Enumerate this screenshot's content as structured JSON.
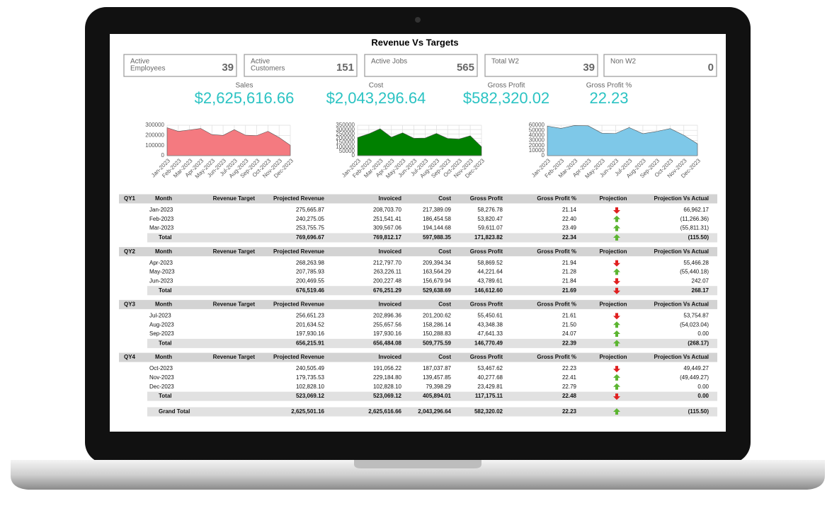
{
  "title": "Revenue Vs Targets",
  "cards": [
    {
      "label": [
        "Active",
        "Employees"
      ],
      "value": 39
    },
    {
      "label": [
        "Active",
        "Customers"
      ],
      "value": 151
    },
    {
      "label": [
        "Active Jobs"
      ],
      "value": 565
    },
    {
      "label": [
        "Total W2"
      ],
      "value": 39
    },
    {
      "label": [
        "Non W2"
      ],
      "value": 0
    }
  ],
  "metrics": [
    {
      "label": "Sales",
      "value": "$2,625,616.66"
    },
    {
      "label": "Cost",
      "value": "$2,043,296.64"
    },
    {
      "label": "Gross Profit",
      "value": "$582,320.02"
    },
    {
      "label": "Gross Profit %",
      "value": "22.23"
    }
  ],
  "charts": [
    {
      "type": "area",
      "color": "#f47a80",
      "categories": [
        "Jan-2023",
        "Feb-2023",
        "Mar-2023",
        "Apr-2023",
        "May-2023",
        "Jun-2023",
        "Jul-2023",
        "Aug-2023",
        "Sep-2023",
        "Oct-2023",
        "Nov-2023",
        "Dec-2023"
      ],
      "values": [
        275666,
        240275,
        253756,
        268264,
        207786,
        200470,
        256651,
        201635,
        197930,
        240505,
        179736,
        102828
      ],
      "ylim": [
        0,
        300000
      ],
      "yticks": [
        0,
        100000,
        200000,
        300000
      ]
    },
    {
      "type": "area",
      "color": "#008000",
      "categories": [
        "Jan-2023",
        "Feb-2023",
        "Mar-2023",
        "Apr-2023",
        "May-2023",
        "Jun-2023",
        "Jul-2023",
        "Aug-2023",
        "Sep-2023",
        "Oct-2023",
        "Nov-2023",
        "Dec-2023"
      ],
      "values": [
        208704,
        251541,
        309567,
        212798,
        263226,
        200227,
        202896,
        255658,
        197930,
        191056,
        229185,
        102828
      ],
      "ylim": [
        0,
        350000
      ],
      "yticks": [
        0,
        50000,
        100000,
        150000,
        200000,
        250000,
        300000,
        350000
      ]
    },
    {
      "type": "area",
      "color": "#7ec8e8",
      "categories": [
        "Jan-2023",
        "Feb-2023",
        "Mar-2023",
        "Apr-2023",
        "May-2023",
        "Jun-2023",
        "Jul-2023",
        "Aug-2023",
        "Sep-2023",
        "Oct-2023",
        "Nov-2023",
        "Dec-2023"
      ],
      "values": [
        58277,
        53820,
        59611,
        58870,
        44222,
        43790,
        55451,
        43348,
        47641,
        53468,
        40278,
        23430
      ],
      "ylim": [
        0,
        60000
      ],
      "yticks": [
        0,
        10000,
        20000,
        30000,
        40000,
        50000,
        60000
      ]
    }
  ],
  "table": {
    "columns": [
      "Month",
      "Revenue Target",
      "Projected Revenue",
      "Invoiced",
      "Cost",
      "Gross Profit",
      "Gross Profit %",
      "Projection",
      "Projection Vs Actual"
    ],
    "quarters": [
      {
        "label": "QY1",
        "rows": [
          {
            "cells": [
              "Jan-2023",
              "275,665.87",
              "208,703.70",
              "217,389.09",
              "58,276.78",
              "21.14",
              "66,962.17"
            ],
            "projection": "down"
          },
          {
            "cells": [
              "Feb-2023",
              "240,275.05",
              "251,541.41",
              "186,454.58",
              "53,820.47",
              "22.40",
              "(11,266.36)"
            ],
            "projection": "up"
          },
          {
            "cells": [
              "Mar-2023",
              "253,755.75",
              "309,567.06",
              "194,144.68",
              "59,611.07",
              "23.49",
              "(55,811.31)"
            ],
            "projection": "up"
          }
        ],
        "total": {
          "cells": [
            "Total",
            "769,696.67",
            "769,812.17",
            "597,988.35",
            "171,823.82",
            "22.34",
            "(115.50)"
          ],
          "projection": "up"
        }
      },
      {
        "label": "QY2",
        "rows": [
          {
            "cells": [
              "Apr-2023",
              "268,263.98",
              "212,797.70",
              "209,394.34",
              "58,869.52",
              "21.94",
              "55,466.28"
            ],
            "projection": "down"
          },
          {
            "cells": [
              "May-2023",
              "207,785.93",
              "263,226.11",
              "163,564.29",
              "44,221.64",
              "21.28",
              "(55,440.18)"
            ],
            "projection": "up"
          },
          {
            "cells": [
              "Jun-2023",
              "200,469.55",
              "200,227.48",
              "156,679.94",
              "43,789.61",
              "21.84",
              "242.07"
            ],
            "projection": "down"
          }
        ],
        "total": {
          "cells": [
            "Total",
            "676,519.46",
            "676,251.29",
            "529,638.69",
            "146,612.60",
            "21.69",
            "268.17"
          ],
          "projection": "down"
        }
      },
      {
        "label": "QY3",
        "rows": [
          {
            "cells": [
              "Jul-2023",
              "256,651.23",
              "202,896.36",
              "201,200.62",
              "55,450.61",
              "21.61",
              "53,754.87"
            ],
            "projection": "down"
          },
          {
            "cells": [
              "Aug-2023",
              "201,634.52",
              "255,657.56",
              "158,286.14",
              "43,348.38",
              "21.50",
              "(54,023.04)"
            ],
            "projection": "up"
          },
          {
            "cells": [
              "Sep-2023",
              "197,930.16",
              "197,930.16",
              "150,288.83",
              "47,641.33",
              "24.07",
              "0.00"
            ],
            "projection": "up"
          }
        ],
        "total": {
          "cells": [
            "Total",
            "656,215.91",
            "656,484.08",
            "509,775.59",
            "146,770.49",
            "22.39",
            "(268.17)"
          ],
          "projection": "up"
        }
      },
      {
        "label": "QY4",
        "rows": [
          {
            "cells": [
              "Oct-2023",
              "240,505.49",
              "191,056.22",
              "187,037.87",
              "53,467.62",
              "22.23",
              "49,449.27"
            ],
            "projection": "down"
          },
          {
            "cells": [
              "Nov-2023",
              "179,735.53",
              "229,184.80",
              "139,457.85",
              "40,277.68",
              "22.41",
              "(49,449.27)"
            ],
            "projection": "up"
          },
          {
            "cells": [
              "Dec-2023",
              "102,828.10",
              "102,828.10",
              "79,398.29",
              "23,429.81",
              "22.79",
              "0.00"
            ],
            "projection": "up"
          }
        ],
        "total": {
          "cells": [
            "Total",
            "523,069.12",
            "523,069.12",
            "405,894.01",
            "117,175.11",
            "22.48",
            "0.00"
          ],
          "projection": "down"
        }
      }
    ],
    "grand_total": {
      "cells": [
        "Grand Total",
        "2,625,501.16",
        "2,625,616.66",
        "2,043,296.64",
        "582,320.02",
        "22.23",
        "(115.50)"
      ],
      "projection": "up"
    }
  }
}
